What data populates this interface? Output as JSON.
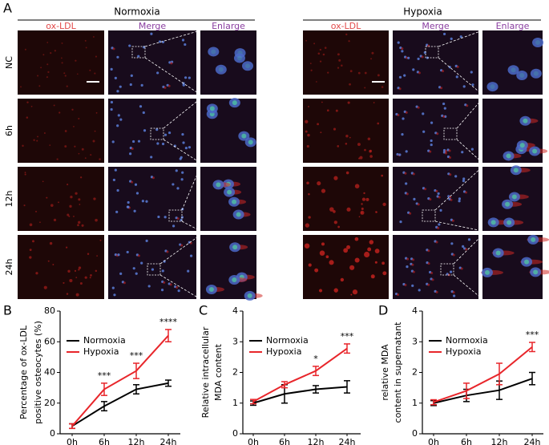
{
  "panel_a": {
    "label": "A",
    "groups": [
      "Normoxia",
      "Hypoxia"
    ],
    "columns": [
      "ox-LDL",
      "Merge",
      "Enlarge"
    ],
    "rows": [
      "NC",
      "6h",
      "12h",
      "24h"
    ]
  },
  "panel_labels": [
    "B",
    "C",
    "D"
  ],
  "chart_data": [
    {
      "type": "line",
      "ylabel": [
        "Percentage of ox-LDL",
        "positive osteocytes (%)"
      ],
      "categories": [
        "0h",
        "6h",
        "12h",
        "24h"
      ],
      "series": [
        {
          "name": "Normoxia",
          "color": "#000000",
          "values": [
            5,
            18,
            29,
            33
          ],
          "errors": [
            1.5,
            3,
            3,
            2
          ]
        },
        {
          "name": "Hypoxia",
          "color": "#e8262b",
          "values": [
            5,
            29,
            41,
            64
          ],
          "errors": [
            1.5,
            4,
            5,
            4
          ]
        }
      ],
      "annotations": [
        null,
        "***",
        "***",
        "****"
      ],
      "ylim": [
        0,
        80
      ],
      "yticks": [
        0,
        20,
        40,
        60,
        80
      ],
      "legend": "upper left"
    },
    {
      "type": "line",
      "ylabel": [
        "Relative intracellular",
        "MDA content"
      ],
      "categories": [
        "0h",
        "6h",
        "12h",
        "24h"
      ],
      "series": [
        {
          "name": "Normoxia",
          "color": "#000000",
          "values": [
            1.0,
            1.3,
            1.45,
            1.53
          ],
          "errors": [
            0.07,
            0.3,
            0.12,
            0.2
          ]
        },
        {
          "name": "Hypoxia",
          "color": "#e8262b",
          "values": [
            1.05,
            1.6,
            2.05,
            2.78
          ],
          "errors": [
            0.07,
            0.1,
            0.15,
            0.15
          ]
        }
      ],
      "annotations": [
        null,
        null,
        "*",
        "***"
      ],
      "ylim": [
        0,
        4
      ],
      "yticks": [
        0,
        1,
        2,
        3,
        4
      ],
      "legend": "upper left"
    },
    {
      "type": "line",
      "ylabel": [
        "relative MDA",
        "content in supernatant"
      ],
      "categories": [
        "0h",
        "6h",
        "12h",
        "24h"
      ],
      "series": [
        {
          "name": "Normoxia",
          "color": "#000000",
          "values": [
            1.0,
            1.25,
            1.42,
            1.8
          ],
          "errors": [
            0.08,
            0.2,
            0.3,
            0.2
          ]
        },
        {
          "name": "Hypoxia",
          "color": "#e8262b",
          "values": [
            1.03,
            1.4,
            1.95,
            2.83
          ],
          "errors": [
            0.08,
            0.25,
            0.35,
            0.15
          ]
        }
      ],
      "annotations": [
        null,
        null,
        null,
        "***"
      ],
      "ylim": [
        0,
        4
      ],
      "yticks": [
        0,
        1,
        2,
        3,
        4
      ],
      "legend": "upper left"
    }
  ]
}
